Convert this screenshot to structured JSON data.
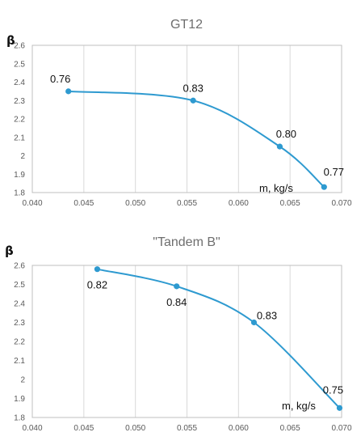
{
  "chart_data": [
    {
      "type": "line",
      "title": "GT12",
      "ylabel": "β",
      "xlabel": "m, kg/s",
      "xlim": [
        0.04,
        0.07
      ],
      "ylim": [
        1.8,
        2.6
      ],
      "xticks": [
        "0.040",
        "0.045",
        "0.050",
        "0.055",
        "0.060",
        "0.065",
        "0.070"
      ],
      "yticks": [
        "1.8",
        "1.9",
        "2",
        "2.1",
        "2.2",
        "2.3",
        "2.4",
        "2.5",
        "2.6"
      ],
      "grid": "vertical",
      "line_color": "#2e9ad0",
      "series": [
        {
          "x": [
            0.0435,
            0.0556,
            0.064,
            0.0683
          ],
          "y": [
            2.35,
            2.3,
            2.05,
            1.83
          ],
          "point_labels": [
            "0.76",
            "0.83",
            "0.80",
            "0.77"
          ]
        }
      ]
    },
    {
      "type": "line",
      "title": "\"Tandem B\"",
      "ylabel": "β",
      "xlabel": "m, kg/s",
      "xlim": [
        0.04,
        0.07
      ],
      "ylim": [
        1.8,
        2.6
      ],
      "xticks": [
        "0.040",
        "0.045",
        "0.050",
        "0.055",
        "0.060",
        "0.065",
        "0.070"
      ],
      "yticks": [
        "1.8",
        "1.9",
        "2",
        "2.1",
        "2.2",
        "2.3",
        "2.4",
        "2.5",
        "2.6"
      ],
      "grid": "vertical",
      "line_color": "#2e9ad0",
      "series": [
        {
          "x": [
            0.0463,
            0.054,
            0.0615,
            0.0698
          ],
          "y": [
            2.58,
            2.49,
            2.3,
            1.85
          ],
          "point_labels": [
            "0.82",
            "0.84",
            "0.83",
            "0.75"
          ]
        }
      ]
    }
  ]
}
